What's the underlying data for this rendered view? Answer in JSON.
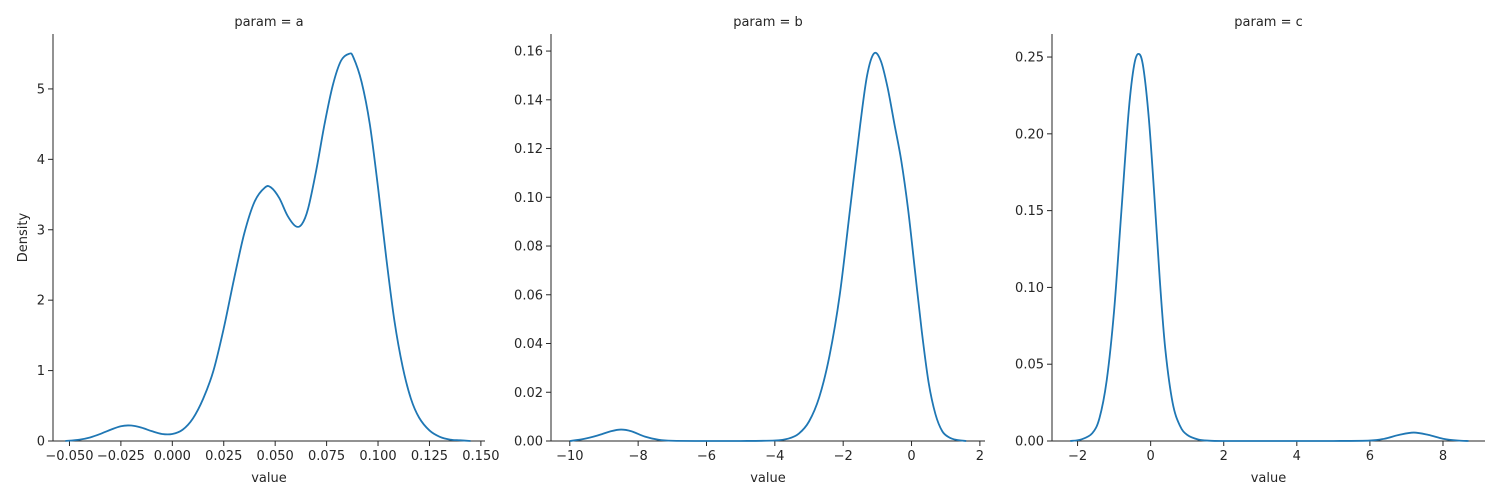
{
  "chart_data": [
    {
      "type": "line",
      "title": "param = a",
      "xlabel": "value",
      "ylabel": "Density",
      "xlim": [
        -0.058,
        0.152
      ],
      "ylim": [
        0,
        5.78
      ],
      "xticks": [
        -0.05,
        -0.025,
        0.0,
        0.025,
        0.05,
        0.075,
        0.1,
        0.125,
        0.15
      ],
      "xtick_labels": [
        "−0.050",
        "−0.025",
        "0.000",
        "0.025",
        "0.050",
        "0.075",
        "0.100",
        "0.125",
        "0.150"
      ],
      "yticks": [
        0,
        1,
        2,
        3,
        4,
        5
      ],
      "ytick_labels": [
        "0",
        "1",
        "2",
        "3",
        "4",
        "5"
      ],
      "grid": false,
      "series": [
        {
          "color": "#1f77b4",
          "x": [
            -0.052,
            -0.045,
            -0.04,
            -0.035,
            -0.03,
            -0.025,
            -0.02,
            -0.015,
            -0.01,
            -0.005,
            0.0,
            0.005,
            0.01,
            0.015,
            0.02,
            0.025,
            0.03,
            0.035,
            0.04,
            0.045,
            0.048,
            0.052,
            0.056,
            0.06,
            0.063,
            0.066,
            0.07,
            0.074,
            0.078,
            0.082,
            0.086,
            0.088,
            0.092,
            0.096,
            0.1,
            0.104,
            0.108,
            0.112,
            0.116,
            0.12,
            0.125,
            0.13,
            0.135,
            0.14,
            0.145
          ],
          "y": [
            0.0,
            0.02,
            0.05,
            0.1,
            0.16,
            0.21,
            0.22,
            0.19,
            0.14,
            0.1,
            0.1,
            0.16,
            0.32,
            0.6,
            1.0,
            1.6,
            2.3,
            2.95,
            3.4,
            3.6,
            3.6,
            3.45,
            3.2,
            3.05,
            3.08,
            3.3,
            3.85,
            4.5,
            5.05,
            5.4,
            5.5,
            5.45,
            5.1,
            4.5,
            3.6,
            2.6,
            1.7,
            1.05,
            0.6,
            0.33,
            0.15,
            0.06,
            0.02,
            0.01,
            0.0
          ]
        }
      ]
    },
    {
      "type": "line",
      "title": "param = b",
      "xlabel": "value",
      "ylabel": "",
      "xlim": [
        -10.55,
        2.15
      ],
      "ylim": [
        0,
        0.167
      ],
      "xticks": [
        -10,
        -8,
        -6,
        -4,
        -2,
        0,
        2
      ],
      "xtick_labels": [
        "−10",
        "−8",
        "−6",
        "−4",
        "−2",
        "0",
        "2"
      ],
      "yticks": [
        0.0,
        0.02,
        0.04,
        0.06,
        0.08,
        0.1,
        0.12,
        0.14,
        0.16
      ],
      "ytick_labels": [
        "0.00",
        "0.02",
        "0.04",
        "0.06",
        "0.08",
        "0.10",
        "0.12",
        "0.14",
        "0.16"
      ],
      "grid": false,
      "series": [
        {
          "color": "#1f77b4",
          "x": [
            -10.0,
            -9.6,
            -9.2,
            -8.8,
            -8.5,
            -8.2,
            -7.8,
            -7.4,
            -7.0,
            -6.0,
            -5.0,
            -4.0,
            -3.6,
            -3.3,
            -3.0,
            -2.7,
            -2.4,
            -2.1,
            -1.8,
            -1.5,
            -1.3,
            -1.1,
            -0.9,
            -0.7,
            -0.5,
            -0.3,
            -0.1,
            0.1,
            0.3,
            0.5,
            0.7,
            0.9,
            1.1,
            1.3,
            1.6
          ],
          "y": [
            0.0,
            0.0008,
            0.0022,
            0.004,
            0.0047,
            0.004,
            0.0018,
            0.0005,
            0.0001,
            0.0,
            0.0,
            0.0002,
            0.001,
            0.003,
            0.008,
            0.018,
            0.035,
            0.06,
            0.095,
            0.13,
            0.15,
            0.159,
            0.156,
            0.145,
            0.13,
            0.115,
            0.095,
            0.07,
            0.045,
            0.024,
            0.011,
            0.004,
            0.0015,
            0.0005,
            0.0
          ]
        }
      ]
    },
    {
      "type": "line",
      "title": "param = c",
      "xlabel": "value",
      "ylabel": "",
      "xlim": [
        -2.7,
        9.15
      ],
      "ylim": [
        0,
        0.265
      ],
      "xticks": [
        -2,
        0,
        2,
        4,
        6,
        8
      ],
      "xtick_labels": [
        "−2",
        "0",
        "2",
        "4",
        "6",
        "8"
      ],
      "yticks": [
        0.0,
        0.05,
        0.1,
        0.15,
        0.2,
        0.25
      ],
      "ytick_labels": [
        "0.00",
        "0.05",
        "0.10",
        "0.15",
        "0.20",
        "0.25"
      ],
      "grid": false,
      "series": [
        {
          "color": "#1f77b4",
          "x": [
            -2.2,
            -1.9,
            -1.6,
            -1.4,
            -1.2,
            -1.0,
            -0.8,
            -0.6,
            -0.45,
            -0.32,
            -0.2,
            -0.05,
            0.1,
            0.25,
            0.4,
            0.6,
            0.8,
            1.0,
            1.3,
            1.6,
            2.0,
            3.0,
            4.0,
            5.0,
            6.0,
            6.4,
            6.8,
            7.2,
            7.6,
            8.0,
            8.4,
            8.7
          ],
          "y": [
            0.0,
            0.001,
            0.005,
            0.015,
            0.04,
            0.085,
            0.15,
            0.215,
            0.245,
            0.252,
            0.243,
            0.21,
            0.16,
            0.105,
            0.06,
            0.025,
            0.01,
            0.004,
            0.001,
            0.0002,
            0.0,
            0.0,
            0.0,
            0.0,
            0.0003,
            0.0015,
            0.004,
            0.0055,
            0.004,
            0.0015,
            0.0003,
            0.0
          ]
        }
      ]
    }
  ]
}
